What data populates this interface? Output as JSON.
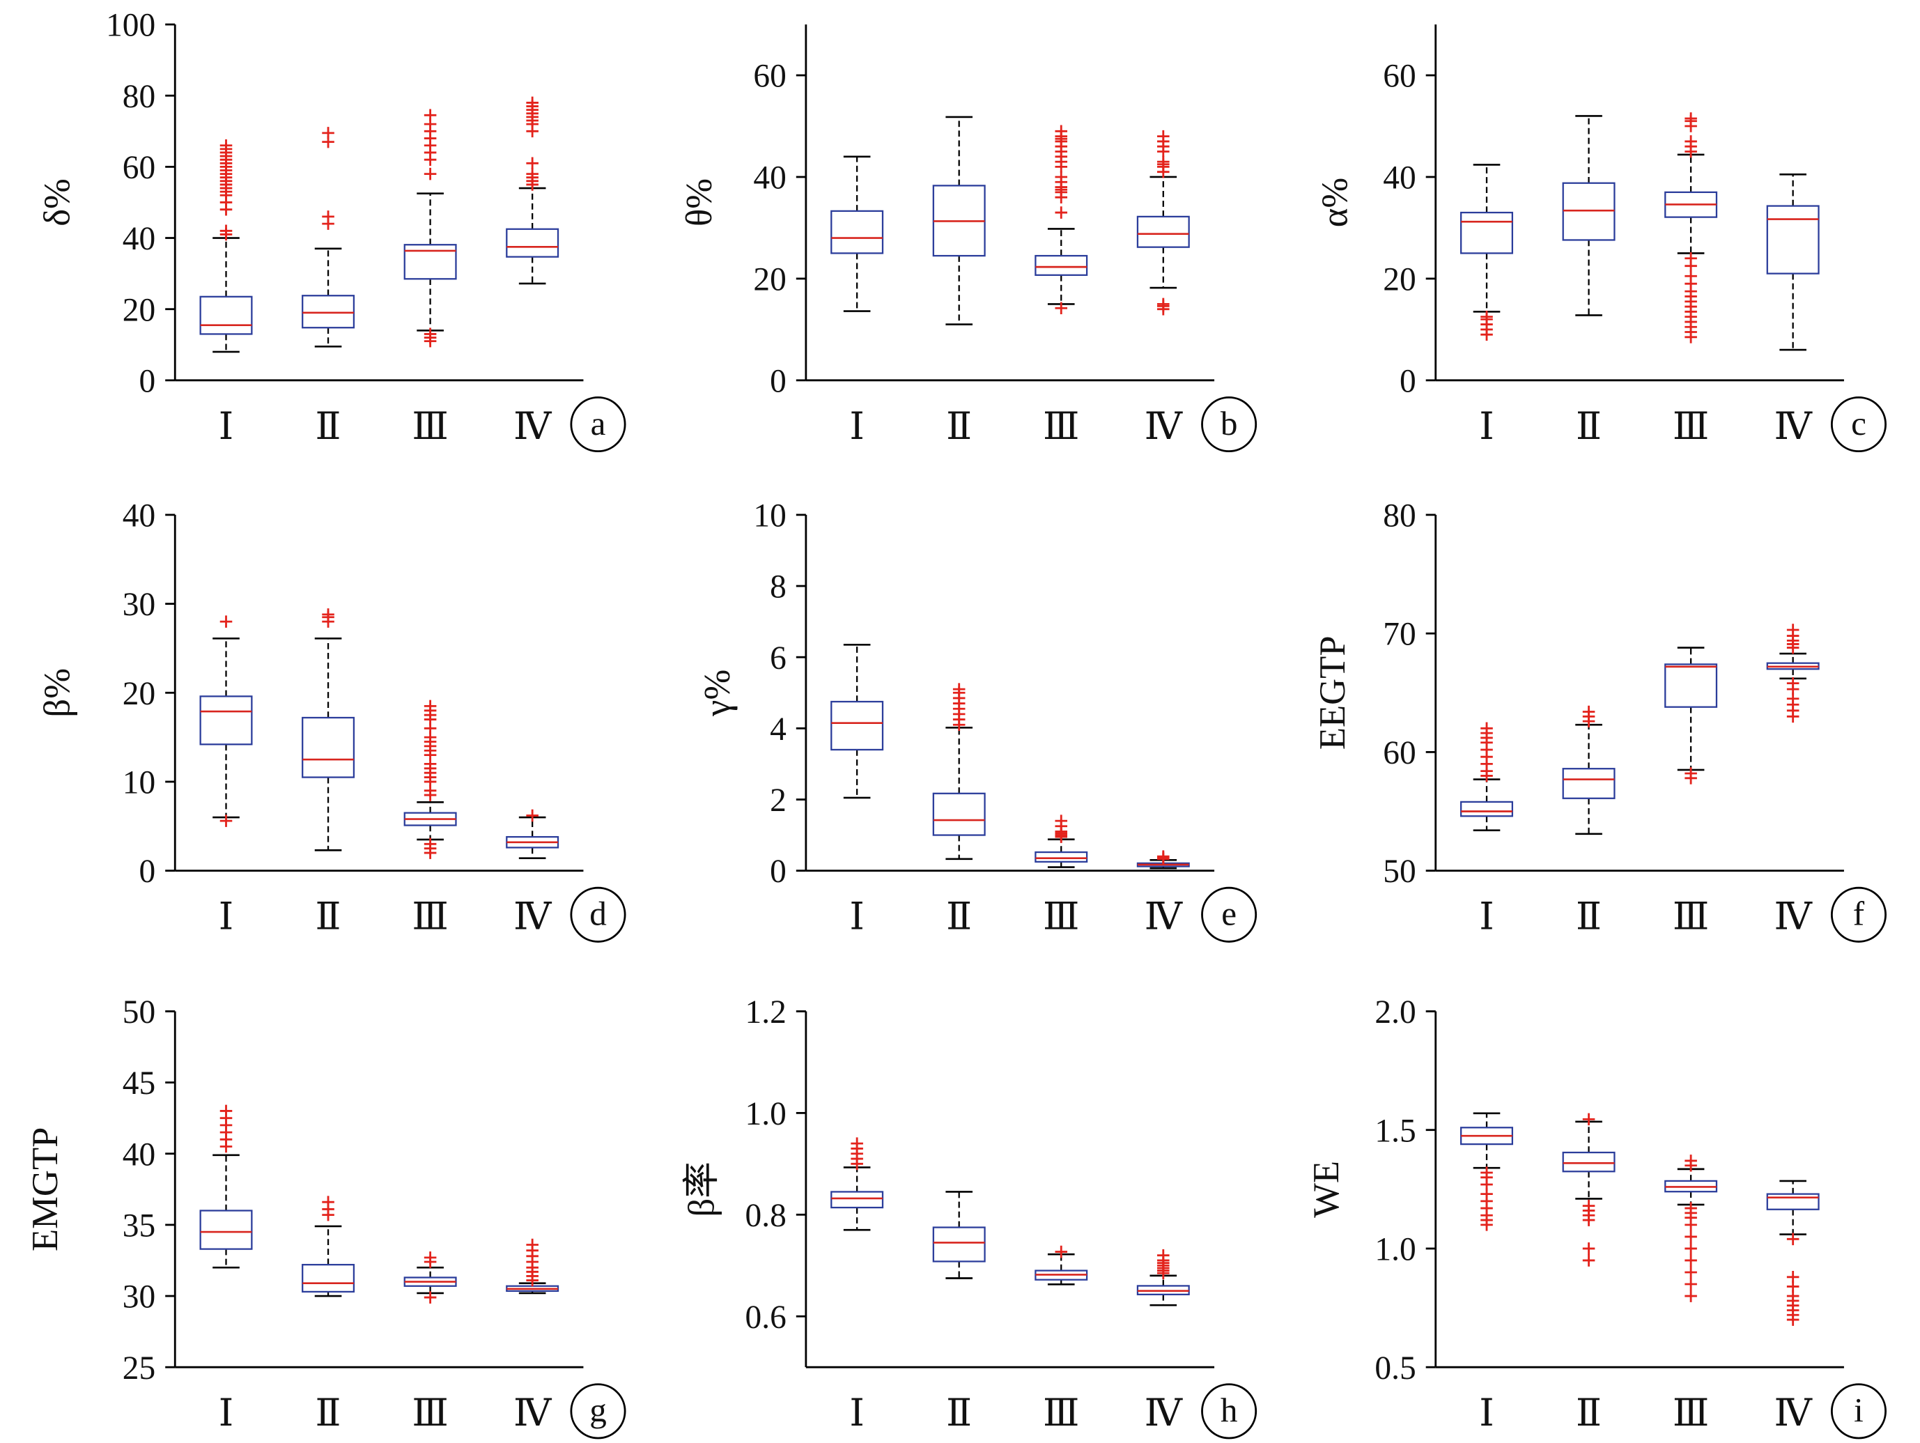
{
  "colors": {
    "box_outline": "#2b3d9b",
    "median": "#d8251e",
    "whisker": "#000000",
    "outlier": "#e3231c",
    "axis": "#000000",
    "background": "#ffffff"
  },
  "chart_data": [
    {
      "type": "box",
      "panel_label": "a",
      "ylabel": "δ%",
      "grid": false,
      "ylim": [
        0,
        100
      ],
      "yticks": [
        "0",
        "20",
        "40",
        "60",
        "80",
        "100"
      ],
      "categories": [
        "Ⅰ",
        "Ⅱ",
        "Ⅲ",
        "Ⅳ"
      ],
      "boxes": [
        {
          "whisker_low": 8,
          "q1": 13,
          "median": 15.5,
          "q3": 23.5,
          "whisker_high": 40,
          "outliers": [
            41,
            42,
            48,
            50,
            52,
            53,
            54,
            55,
            56,
            57,
            58,
            59,
            60,
            61,
            62,
            63,
            64,
            65,
            66
          ]
        },
        {
          "whisker_low": 9.5,
          "q1": 14.8,
          "median": 19,
          "q3": 23.8,
          "whisker_high": 37,
          "outliers": [
            44,
            46,
            67,
            69.5
          ]
        },
        {
          "whisker_low": 14,
          "q1": 28.5,
          "median": 36.4,
          "q3": 38.1,
          "whisker_high": 52.5,
          "outliers": [
            11,
            12,
            13,
            58,
            62,
            64,
            66,
            68,
            70,
            72,
            74.5
          ]
        },
        {
          "whisker_low": 27.2,
          "q1": 34.7,
          "median": 37.5,
          "q3": 42.5,
          "whisker_high": 54,
          "outliers": [
            55,
            56,
            57,
            58,
            61,
            70,
            72,
            73,
            74,
            75,
            76,
            77,
            78
          ]
        }
      ]
    },
    {
      "type": "box",
      "panel_label": "b",
      "ylabel": "θ%",
      "grid": false,
      "ylim": [
        0,
        70
      ],
      "yticks": [
        "0",
        "20",
        "40",
        "60"
      ],
      "categories": [
        "Ⅰ",
        "Ⅱ",
        "Ⅲ",
        "Ⅳ"
      ],
      "boxes": [
        {
          "whisker_low": 13.6,
          "q1": 25,
          "median": 28,
          "q3": 33.3,
          "whisker_high": 44,
          "outliers": []
        },
        {
          "whisker_low": 11,
          "q1": 24.5,
          "median": 31.3,
          "q3": 38.3,
          "whisker_high": 51.8,
          "outliers": []
        },
        {
          "whisker_low": 15,
          "q1": 20.7,
          "median": 22.3,
          "q3": 24.5,
          "whisker_high": 29.8,
          "outliers": [
            14.2,
            33,
            36,
            37,
            37.5,
            38,
            39,
            40,
            42,
            43,
            44,
            45,
            46,
            47,
            47.5,
            48,
            49
          ]
        },
        {
          "whisker_low": 18.2,
          "q1": 26.2,
          "median": 28.8,
          "q3": 32.2,
          "whisker_high": 40,
          "outliers": [
            14,
            14.6,
            15,
            41,
            42,
            42.5,
            43,
            45,
            46,
            47,
            48
          ]
        }
      ]
    },
    {
      "type": "box",
      "panel_label": "c",
      "ylabel": "α%",
      "grid": false,
      "ylim": [
        0,
        70
      ],
      "yticks": [
        "0",
        "20",
        "40",
        "60"
      ],
      "categories": [
        "Ⅰ",
        "Ⅱ",
        "Ⅲ",
        "Ⅳ"
      ],
      "boxes": [
        {
          "whisker_low": 13.5,
          "q1": 25,
          "median": 31.2,
          "q3": 33,
          "whisker_high": 42.4,
          "outliers": [
            9,
            10,
            11,
            12,
            12.5
          ]
        },
        {
          "whisker_low": 12.8,
          "q1": 27.6,
          "median": 33.4,
          "q3": 38.8,
          "whisker_high": 52,
          "outliers": []
        },
        {
          "whisker_low": 25,
          "q1": 32.1,
          "median": 34.6,
          "q3": 37,
          "whisker_high": 44.4,
          "outliers": [
            8.5,
            9.5,
            10.5,
            11.5,
            12.5,
            13.5,
            14.5,
            15.5,
            16.5,
            17.5,
            19,
            20.5,
            22.5,
            24,
            45,
            46,
            47,
            50,
            51,
            51.5
          ]
        },
        {
          "whisker_low": 6,
          "q1": 21,
          "median": 31.7,
          "q3": 34.3,
          "whisker_high": 40.5,
          "outliers": []
        }
      ]
    },
    {
      "type": "box",
      "panel_label": "d",
      "ylabel": "β%",
      "grid": false,
      "ylim": [
        0,
        40
      ],
      "yticks": [
        "0",
        "10",
        "20",
        "30",
        "40"
      ],
      "categories": [
        "Ⅰ",
        "Ⅱ",
        "Ⅲ",
        "Ⅳ"
      ],
      "boxes": [
        {
          "whisker_low": 6,
          "q1": 14.2,
          "median": 17.9,
          "q3": 19.6,
          "whisker_high": 26.1,
          "outliers": [
            5.6,
            28
          ]
        },
        {
          "whisker_low": 2.3,
          "q1": 10.5,
          "median": 12.5,
          "q3": 17.2,
          "whisker_high": 26.1,
          "outliers": [
            28,
            28.5,
            28.8
          ]
        },
        {
          "whisker_low": 3.5,
          "q1": 5.1,
          "median": 5.8,
          "q3": 6.5,
          "whisker_high": 7.7,
          "outliers": [
            2,
            2.5,
            3,
            8.5,
            9,
            10,
            10.5,
            11,
            11.5,
            12,
            13,
            13.5,
            14,
            14.5,
            15,
            16,
            17,
            17.5,
            18,
            18.5
          ]
        },
        {
          "whisker_low": 1.4,
          "q1": 2.6,
          "median": 3.2,
          "q3": 3.8,
          "whisker_high": 6,
          "outliers": [
            6.2
          ]
        }
      ]
    },
    {
      "type": "box",
      "panel_label": "e",
      "ylabel": "γ%",
      "grid": false,
      "ylim": [
        0,
        10
      ],
      "yticks": [
        "0",
        "2",
        "4",
        "6",
        "8",
        "10"
      ],
      "categories": [
        "Ⅰ",
        "Ⅱ",
        "Ⅲ",
        "Ⅳ"
      ],
      "boxes": [
        {
          "whisker_low": 2.05,
          "q1": 3.4,
          "median": 4.15,
          "q3": 4.75,
          "whisker_high": 6.35,
          "outliers": []
        },
        {
          "whisker_low": 0.33,
          "q1": 1,
          "median": 1.42,
          "q3": 2.17,
          "whisker_high": 4.02,
          "outliers": [
            4.1,
            4.25,
            4.4,
            4.55,
            4.7,
            4.85,
            5,
            5.1
          ]
        },
        {
          "whisker_low": 0.1,
          "q1": 0.25,
          "median": 0.35,
          "q3": 0.52,
          "whisker_high": 0.88,
          "outliers": [
            0.95,
            1,
            1.05,
            1.1,
            1.25,
            1.4
          ]
        },
        {
          "whisker_low": 0.07,
          "q1": 0.12,
          "median": 0.17,
          "q3": 0.21,
          "whisker_high": 0.3,
          "outliers": [
            0.33,
            0.37,
            0.4
          ]
        }
      ]
    },
    {
      "type": "box",
      "panel_label": "f",
      "ylabel": "EEGTP",
      "grid": false,
      "ylim": [
        50,
        80
      ],
      "yticks": [
        "50",
        "60",
        "70",
        "80"
      ],
      "categories": [
        "Ⅰ",
        "Ⅱ",
        "Ⅲ",
        "Ⅳ"
      ],
      "boxes": [
        {
          "whisker_low": 53.4,
          "q1": 54.6,
          "median": 55,
          "q3": 55.8,
          "whisker_high": 57.7,
          "outliers": [
            58,
            58.4,
            59,
            59.6,
            60.2,
            60.8,
            61.2,
            61.6,
            62
          ]
        },
        {
          "whisker_low": 53.1,
          "q1": 56.1,
          "median": 57.7,
          "q3": 58.6,
          "whisker_high": 62.3,
          "outliers": [
            62.6,
            63,
            63.4
          ]
        },
        {
          "whisker_low": 58.5,
          "q1": 63.8,
          "median": 67.2,
          "q3": 67.4,
          "whisker_high": 68.8,
          "outliers": [
            57.8,
            58.2
          ]
        },
        {
          "whisker_low": 66.2,
          "q1": 67,
          "median": 67.2,
          "q3": 67.5,
          "whisker_high": 68.3,
          "outliers": [
            63,
            63.5,
            64,
            64.5,
            65.3,
            65.8,
            68.8,
            69.1,
            69.4,
            69.8,
            70.3
          ]
        }
      ]
    },
    {
      "type": "box",
      "panel_label": "g",
      "ylabel": "EMGTP",
      "grid": false,
      "ylim": [
        25,
        50
      ],
      "yticks": [
        "25",
        "30",
        "35",
        "40",
        "45",
        "50"
      ],
      "categories": [
        "Ⅰ",
        "Ⅱ",
        "Ⅲ",
        "Ⅳ"
      ],
      "boxes": [
        {
          "whisker_low": 32,
          "q1": 33.3,
          "median": 34.5,
          "q3": 36,
          "whisker_high": 39.9,
          "outliers": [
            40.5,
            41,
            41.5,
            42,
            42.5,
            43
          ]
        },
        {
          "whisker_low": 30,
          "q1": 30.3,
          "median": 30.9,
          "q3": 32.2,
          "whisker_high": 34.9,
          "outliers": [
            35.7,
            36.1,
            36.6
          ]
        },
        {
          "whisker_low": 30.2,
          "q1": 30.7,
          "median": 31,
          "q3": 31.3,
          "whisker_high": 32,
          "outliers": [
            29.9,
            32.4,
            32.7
          ]
        },
        {
          "whisker_low": 30.2,
          "q1": 30.35,
          "median": 30.5,
          "q3": 30.7,
          "whisker_high": 30.9,
          "outliers": [
            31.1,
            31.4,
            31.7,
            32,
            32.4,
            32.8,
            33.2,
            33.6
          ]
        }
      ]
    },
    {
      "type": "box",
      "panel_label": "h",
      "ylabel": "β率",
      "grid": false,
      "ylim": [
        0.5,
        1.2
      ],
      "yticks": [
        "0.6",
        "0.8",
        "1.0",
        "1.2"
      ],
      "categories": [
        "Ⅰ",
        "Ⅱ",
        "Ⅲ",
        "Ⅳ"
      ],
      "boxes": [
        {
          "whisker_low": 0.77,
          "q1": 0.814,
          "median": 0.832,
          "q3": 0.845,
          "whisker_high": 0.893,
          "outliers": [
            0.9,
            0.91,
            0.92,
            0.93,
            0.94
          ]
        },
        {
          "whisker_low": 0.675,
          "q1": 0.708,
          "median": 0.745,
          "q3": 0.775,
          "whisker_high": 0.845,
          "outliers": []
        },
        {
          "whisker_low": 0.663,
          "q1": 0.672,
          "median": 0.682,
          "q3": 0.69,
          "whisker_high": 0.722,
          "outliers": [
            0.727
          ]
        },
        {
          "whisker_low": 0.622,
          "q1": 0.643,
          "median": 0.65,
          "q3": 0.66,
          "whisker_high": 0.68,
          "outliers": [
            0.685,
            0.69,
            0.695,
            0.7,
            0.705,
            0.71,
            0.72
          ]
        }
      ]
    },
    {
      "type": "box",
      "panel_label": "i",
      "ylabel": "WE",
      "grid": false,
      "ylim": [
        0.5,
        2.0
      ],
      "yticks": [
        "0.5",
        "1.0",
        "1.5",
        "2.0"
      ],
      "categories": [
        "Ⅰ",
        "Ⅱ",
        "Ⅲ",
        "Ⅳ"
      ],
      "boxes": [
        {
          "whisker_low": 1.34,
          "q1": 1.44,
          "median": 1.475,
          "q3": 1.51,
          "whisker_high": 1.57,
          "outliers": [
            1.1,
            1.12,
            1.14,
            1.17,
            1.2,
            1.23,
            1.27,
            1.3,
            1.32
          ]
        },
        {
          "whisker_low": 1.21,
          "q1": 1.325,
          "median": 1.36,
          "q3": 1.405,
          "whisker_high": 1.535,
          "outliers": [
            0.95,
            1,
            1.12,
            1.14,
            1.16,
            1.18,
            1.545
          ]
        },
        {
          "whisker_low": 1.185,
          "q1": 1.24,
          "median": 1.26,
          "q3": 1.285,
          "whisker_high": 1.335,
          "outliers": [
            0.8,
            0.85,
            0.9,
            0.95,
            1,
            1.05,
            1.1,
            1.13,
            1.15,
            1.17,
            1.35,
            1.37
          ]
        },
        {
          "whisker_low": 1.06,
          "q1": 1.165,
          "median": 1.215,
          "q3": 1.23,
          "whisker_high": 1.285,
          "outliers": [
            0.7,
            0.72,
            0.74,
            0.76,
            0.78,
            0.8,
            0.84,
            0.88,
            1.04
          ]
        }
      ]
    }
  ]
}
